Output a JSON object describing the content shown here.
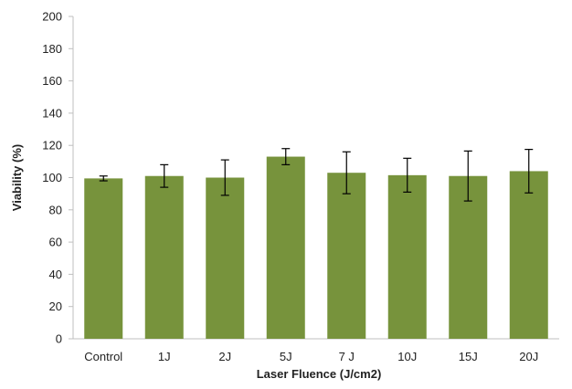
{
  "chart_data": {
    "type": "bar",
    "categories": [
      "Control",
      "1J",
      "2J",
      "5J",
      "7 J",
      "10J",
      "15J",
      "20J"
    ],
    "values": [
      99.5,
      101,
      100,
      113,
      103,
      101.5,
      101,
      104
    ],
    "errors": [
      1.5,
      7,
      11,
      5,
      13,
      10.5,
      15.5,
      13.5
    ],
    "xlabel": "Laser Fluence (J/cm2)",
    "ylabel": "Viability (%)",
    "ylim": [
      0,
      200
    ],
    "yticks": [
      0,
      20,
      40,
      60,
      80,
      100,
      120,
      140,
      160,
      180,
      200
    ],
    "grid": false,
    "bar_color": "#77933c",
    "error_bar_color": "#000000",
    "axis_color": "#bfbfbf"
  }
}
